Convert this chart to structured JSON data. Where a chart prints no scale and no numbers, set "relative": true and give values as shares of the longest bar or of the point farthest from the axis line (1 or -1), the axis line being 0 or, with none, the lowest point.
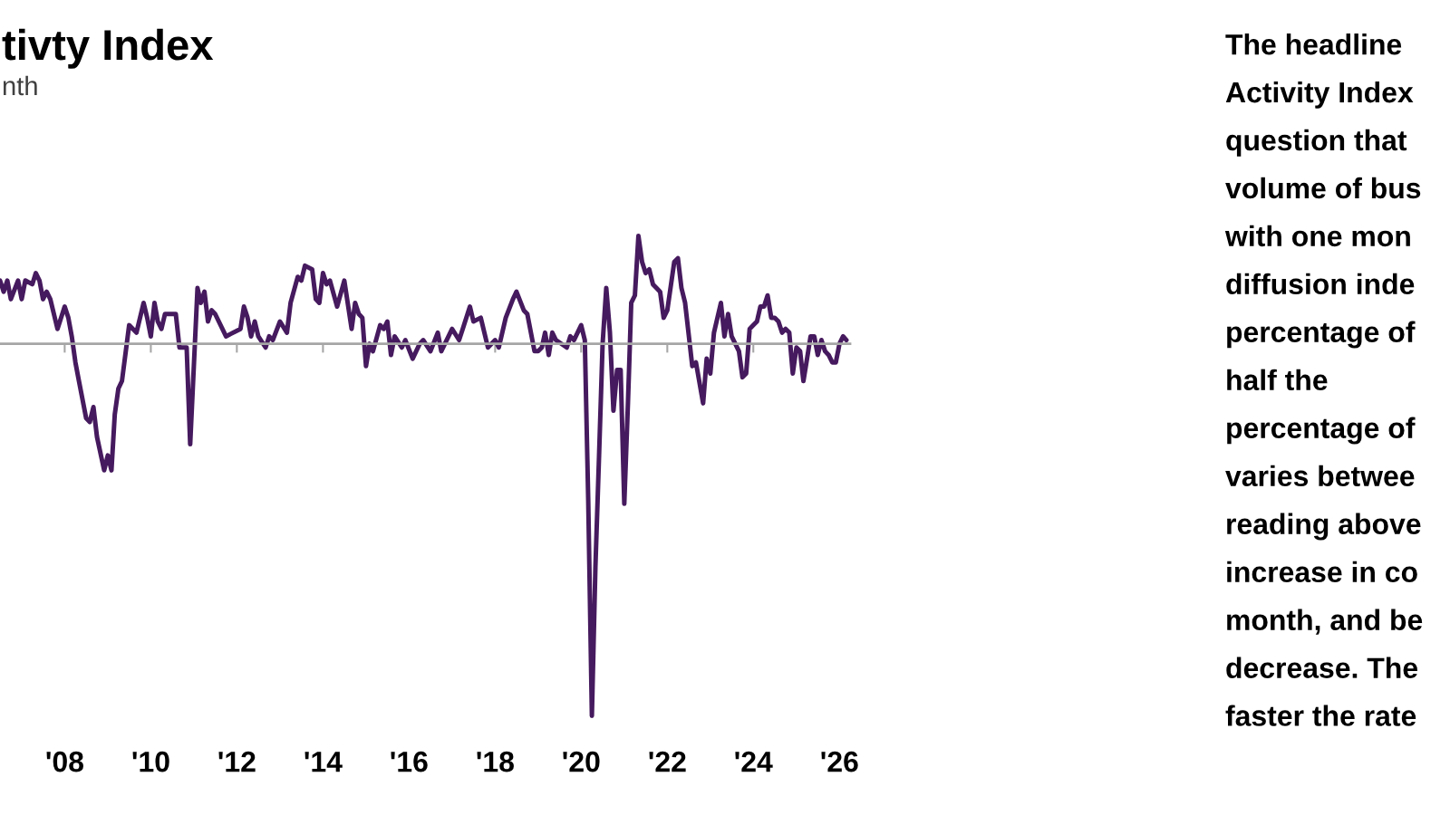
{
  "chart_data": {
    "type": "line",
    "title": "tivty Index",
    "subtitle": "nth",
    "relative": true,
    "color": "#461a5e",
    "annotations": [
      "The headline\nActivity Index\nquestion that\nvolume of bus\nwith one mon\ndiffusion inde\npercentage of\nhalf the\npercentage of\nvaries betwee\nreading above\nincrease in co\nmonth, and be\ndecrease. The\nfaster the rate"
    ],
    "xlim": [
      "2006-07",
      "2026-04"
    ],
    "xticks": [
      {
        "value": "2008",
        "label": "'08"
      },
      {
        "value": "2010",
        "label": "'10"
      },
      {
        "value": "2012",
        "label": "'12"
      },
      {
        "value": "2014",
        "label": "'14"
      },
      {
        "value": "2016",
        "label": "'16"
      },
      {
        "value": "2018",
        "label": "'18"
      },
      {
        "value": "2020",
        "label": "'20"
      },
      {
        "value": "2022",
        "label": "'22"
      },
      {
        "value": "2024",
        "label": "'24"
      },
      {
        "value": "2026",
        "label": "'26"
      }
    ],
    "x": [
      "2006-07",
      "2006-08",
      "2006-09",
      "2006-10",
      "2006-12",
      "2007-01",
      "2007-02",
      "2007-04",
      "2007-05",
      "2007-06",
      "2007-07",
      "2007-08",
      "2007-09",
      "2007-11",
      "2008-01",
      "2008-02",
      "2008-03",
      "2008-04",
      "2008-05",
      "2008-07",
      "2008-08",
      "2008-09",
      "2008-10",
      "2008-12",
      "2009-01",
      "2009-02",
      "2009-03",
      "2009-04",
      "2009-05",
      "2009-07",
      "2009-09",
      "2009-11",
      "2009-12",
      "2010-01",
      "2010-02",
      "2010-03",
      "2010-04",
      "2010-05",
      "2010-08",
      "2010-09",
      "2010-11",
      "2010-12",
      "2011-01",
      "2011-02",
      "2011-03",
      "2011-04",
      "2011-05",
      "2011-06",
      "2011-07",
      "2011-10",
      "2012-02",
      "2012-03",
      "2012-04",
      "2012-05",
      "2012-06",
      "2012-07",
      "2012-09",
      "2012-10",
      "2012-11",
      "2013-01",
      "2013-03",
      "2013-04",
      "2013-06",
      "2013-07",
      "2013-08",
      "2013-10",
      "2013-11",
      "2013-12",
      "2014-01",
      "2014-02",
      "2014-03",
      "2014-05",
      "2014-07",
      "2014-09",
      "2014-10",
      "2014-11",
      "2014-12",
      "2015-01",
      "2015-02",
      "2015-03",
      "2015-05",
      "2015-06",
      "2015-07",
      "2015-08",
      "2015-09",
      "2015-11",
      "2015-12",
      "2016-02",
      "2016-04",
      "2016-05",
      "2016-07",
      "2016-09",
      "2016-10",
      "2017-01",
      "2017-03",
      "2017-04",
      "2017-06",
      "2017-07",
      "2017-09",
      "2017-11",
      "2018-01",
      "2018-02",
      "2018-04",
      "2018-06",
      "2018-07",
      "2018-09",
      "2018-10",
      "2018-12",
      "2019-01",
      "2019-02",
      "2019-03",
      "2019-04",
      "2019-05",
      "2019-06",
      "2019-09",
      "2019-10",
      "2019-11",
      "2020-01",
      "2020-02",
      "2020-03",
      "2020-04",
      "2020-05",
      "2020-06",
      "2020-07",
      "2020-08",
      "2020-09",
      "2020-10",
      "2020-11",
      "2020-12",
      "2021-01",
      "2021-02",
      "2021-03",
      "2021-04",
      "2021-05",
      "2021-06",
      "2021-07",
      "2021-08",
      "2021-09",
      "2021-10",
      "2021-11",
      "2021-12",
      "2022-01",
      "2022-03",
      "2022-04",
      "2022-05",
      "2022-06",
      "2022-08",
      "2022-09",
      "2022-11",
      "2022-12",
      "2023-01",
      "2023-02",
      "2023-04",
      "2023-05",
      "2023-06",
      "2023-07",
      "2023-09",
      "2023-10",
      "2023-11",
      "2023-12",
      "2024-01",
      "2024-02",
      "2024-03",
      "2024-04",
      "2024-05",
      "2024-06",
      "2024-07",
      "2024-08",
      "2024-09",
      "2024-10",
      "2024-11",
      "2024-12",
      "2025-01",
      "2025-02",
      "2025-03",
      "2025-04",
      "2025-05",
      "2025-06",
      "2025-07",
      "2025-08",
      "2025-09",
      "2025-10",
      "2025-11",
      "2025-12",
      "2026-01",
      "2026-02",
      "2026-03"
    ],
    "values": [
      0.17,
      0.14,
      0.17,
      0.12,
      0.17,
      0.12,
      0.17,
      0.16,
      0.19,
      0.17,
      0.12,
      0.14,
      0.12,
      0.04,
      0.1,
      0.07,
      0.02,
      -0.05,
      -0.1,
      -0.2,
      -0.21,
      -0.17,
      -0.25,
      -0.34,
      -0.3,
      -0.34,
      -0.19,
      -0.12,
      -0.1,
      0.05,
      0.03,
      0.11,
      0.07,
      0.02,
      0.11,
      0.06,
      0.04,
      0.08,
      0.08,
      -0.01,
      -0.01,
      -0.27,
      -0.06,
      0.15,
      0.11,
      0.14,
      0.06,
      0.09,
      0.08,
      0.02,
      0.04,
      0.1,
      0.07,
      0.02,
      0.06,
      0.02,
      -0.01,
      0.02,
      0.01,
      0.06,
      0.03,
      0.11,
      0.18,
      0.17,
      0.21,
      0.2,
      0.12,
      0.11,
      0.19,
      0.16,
      0.17,
      0.1,
      0.17,
      0.04,
      0.11,
      0.08,
      0.07,
      -0.06,
      0.0,
      -0.02,
      0.05,
      0.04,
      0.06,
      -0.03,
      0.02,
      -0.01,
      0.01,
      -0.04,
      0.0,
      0.01,
      -0.02,
      0.03,
      -0.02,
      0.04,
      0.01,
      0.04,
      0.1,
      0.06,
      0.07,
      -0.01,
      0.01,
      -0.01,
      0.07,
      0.12,
      0.14,
      0.09,
      0.08,
      -0.02,
      -0.02,
      -0.01,
      0.03,
      -0.03,
      0.03,
      0.01,
      -0.01,
      0.02,
      0.01,
      0.05,
      0.01,
      -0.42,
      -1,
      -0.6,
      -0.3,
      0.0,
      0.15,
      0.03,
      -0.18,
      -0.07,
      -0.07,
      -0.43,
      -0.16,
      0.11,
      0.13,
      0.29,
      0.22,
      0.19,
      0.2,
      0.16,
      0.15,
      0.14,
      0.07,
      0.09,
      0.22,
      0.23,
      0.15,
      0.11,
      -0.06,
      -0.05,
      -0.16,
      -0.04,
      -0.08,
      0.03,
      0.11,
      0.02,
      0.08,
      0.02,
      -0.02,
      -0.09,
      -0.08,
      0.04,
      0.05,
      0.06,
      0.1,
      0.1,
      0.13,
      0.07,
      0.07,
      0.06,
      0.03,
      0.04,
      0.03,
      -0.08,
      -0.01,
      -0.02,
      -0.1,
      -0.04,
      0.02,
      0.02,
      -0.03,
      0.01,
      -0.02,
      -0.03,
      -0.05,
      -0.05,
      0.0,
      0.02,
      0.01
    ]
  }
}
